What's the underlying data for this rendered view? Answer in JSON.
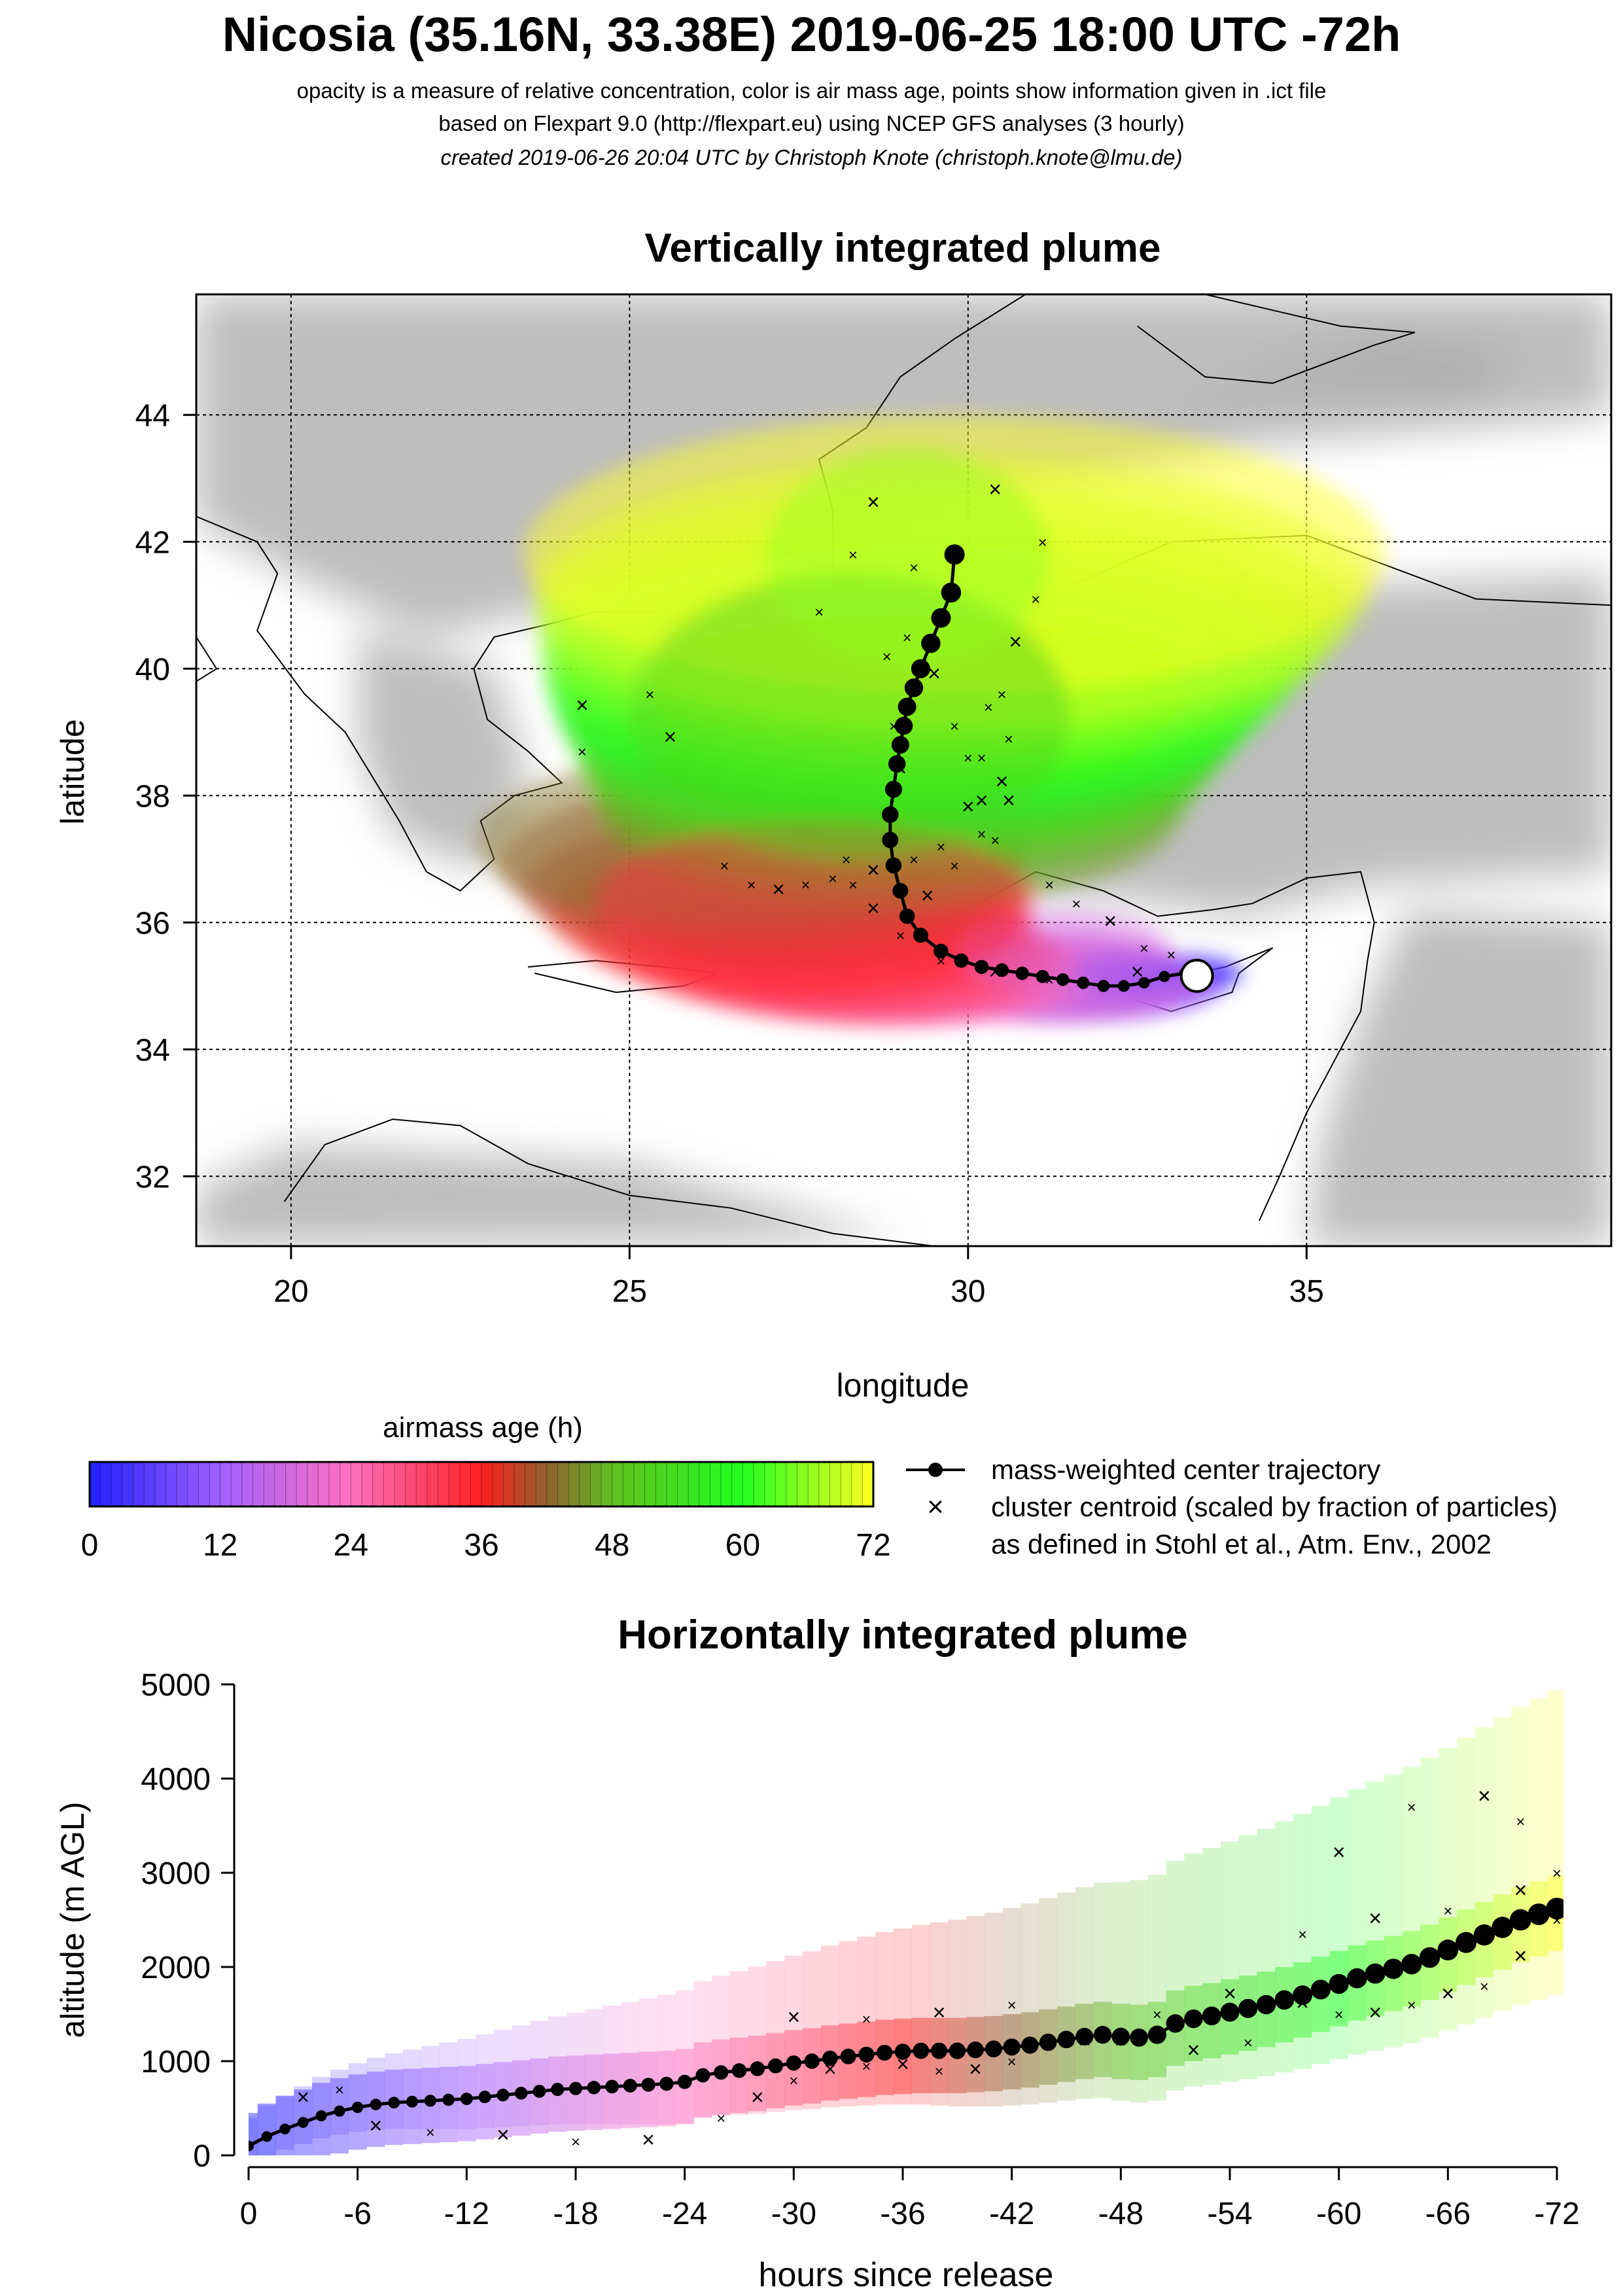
{
  "header": {
    "title": "Nicosia (35.16N, 33.38E) 2019-06-25 18:00 UTC -72h",
    "subtitle_1": "opacity is a measure of relative concentration, color is air mass age, points show information given in .ict file",
    "subtitle_2": "based on Flexpart 9.0 (http://flexpart.eu) using NCEP GFS analyses (3 hourly)",
    "subtitle_3": "created 2019-06-26 20:04 UTC by Christoph Knote (christoph.knote@lmu.de)"
  },
  "colors": {
    "age_scale": [
      "#2020ff",
      "#8040ff",
      "#e070e0",
      "#ff6090",
      "#ff2020",
      "#a06020",
      "#40e020",
      "#20ff20",
      "#a0ff20",
      "#ffff20"
    ],
    "land_shade": "#a8a8a8",
    "sea": "#ffffff"
  },
  "chart_data": [
    {
      "type": "scatter",
      "title": "Vertically integrated plume",
      "xlabel": "longitude",
      "ylabel": "latitude",
      "xlim": [
        18.6,
        39.5
      ],
      "ylim": [
        30.9,
        45.9
      ],
      "xticks": [
        "20",
        "25",
        "30",
        "35"
      ],
      "yticks": [
        "32",
        "34",
        "36",
        "38",
        "40",
        "42",
        "44"
      ],
      "grid": true,
      "release_point": {
        "lon": 33.38,
        "lat": 35.16,
        "label": "Nicosia"
      },
      "series": [
        {
          "name": "mass-weighted center trajectory",
          "lon": [
            33.38,
            33.2,
            32.9,
            32.6,
            32.3,
            32.0,
            31.7,
            31.4,
            31.1,
            30.8,
            30.5,
            30.2,
            29.9,
            29.6,
            29.3,
            29.1,
            29.0,
            28.9,
            28.85,
            28.85,
            28.9,
            28.95,
            29.0,
            29.05,
            29.1,
            29.2,
            29.3,
            29.45,
            29.6,
            29.75,
            29.8
          ],
          "lat": [
            35.2,
            35.2,
            35.15,
            35.05,
            35.0,
            35.0,
            35.05,
            35.1,
            35.15,
            35.2,
            35.25,
            35.3,
            35.4,
            35.55,
            35.8,
            36.1,
            36.5,
            36.9,
            37.3,
            37.7,
            38.1,
            38.5,
            38.8,
            39.1,
            39.4,
            39.7,
            40.0,
            40.4,
            40.8,
            41.2,
            41.8
          ]
        },
        {
          "name": "cluster centroid (scaled by fraction of particles)",
          "lon": [
            32.5,
            32.0,
            31.2,
            30.4,
            29.6,
            29.0,
            28.6,
            28.3,
            28.2,
            29.4,
            29.8,
            30.2,
            30.6,
            31.2,
            31.6,
            32.1,
            32.6,
            33.0,
            30.5,
            30.6,
            30.5,
            30.7,
            31.0,
            31.1,
            30.4,
            30.3,
            30.2,
            30.0,
            29.6,
            29.2,
            28.6,
            28.0,
            27.6,
            27.2,
            26.8,
            26.4,
            25.6,
            25.3,
            24.3,
            24.3,
            27.8,
            28.3,
            28.6,
            28.8,
            28.9,
            29.0,
            29.1,
            29.2,
            29.5,
            29.8,
            30.0,
            30.2,
            30.4
          ],
          "lat": [
            35.2,
            35.0,
            35.1,
            35.2,
            35.4,
            35.8,
            36.2,
            36.6,
            37.0,
            36.4,
            36.9,
            37.4,
            37.9,
            36.6,
            36.3,
            36.0,
            35.6,
            35.5,
            38.2,
            38.9,
            39.6,
            40.4,
            41.1,
            42.0,
            42.8,
            39.4,
            38.6,
            37.8,
            37.2,
            37.0,
            36.8,
            36.7,
            36.6,
            36.5,
            36.6,
            36.9,
            38.9,
            39.6,
            38.7,
            39.4,
            40.9,
            41.8,
            42.6,
            40.2,
            39.1,
            38.4,
            40.5,
            41.6,
            39.9,
            39.1,
            38.6,
            37.9,
            37.3
          ]
        }
      ],
      "plume_age_hours_regions": [
        {
          "age": "0-12",
          "lon_range": [
            31.5,
            33.3
          ],
          "lat_range": [
            34.9,
            35.5
          ]
        },
        {
          "age": "12-24",
          "lon_range": [
            29.8,
            33.0
          ],
          "lat_range": [
            34.9,
            36.2
          ]
        },
        {
          "age": "24-42",
          "lon_range": [
            24.5,
            31.0
          ],
          "lat_range": [
            35.0,
            37.6
          ]
        },
        {
          "age": "42-60",
          "lon_range": [
            25.0,
            31.5
          ],
          "lat_range": [
            37.0,
            41.5
          ]
        },
        {
          "age": "60-72",
          "lon_range": [
            27.0,
            31.2
          ],
          "lat_range": [
            40.0,
            43.5
          ]
        }
      ]
    },
    {
      "type": "heatmap",
      "title": "airmass age (h)",
      "orientation": "horizontal-colorbar",
      "range": [
        0,
        72
      ],
      "ticks": [
        "0",
        "12",
        "24",
        "36",
        "48",
        "60",
        "72"
      ],
      "colors_by_age": [
        {
          "age": 0,
          "color": "#2020ff"
        },
        {
          "age": 12,
          "color": "#a060ff"
        },
        {
          "age": 24,
          "color": "#ff70c0"
        },
        {
          "age": 36,
          "color": "#ff2020"
        },
        {
          "age": 42,
          "color": "#906030"
        },
        {
          "age": 48,
          "color": "#60c020"
        },
        {
          "age": 60,
          "color": "#20ff20"
        },
        {
          "age": 72,
          "color": "#ffff20"
        }
      ]
    },
    {
      "type": "scatter",
      "title": "Horizontally integrated plume",
      "xlabel": "hours since release",
      "ylabel": "altitude (m AGL)",
      "xlim": [
        0,
        -72
      ],
      "ylim": [
        0,
        5000
      ],
      "xticks": [
        "0",
        "-6",
        "-12",
        "-18",
        "-24",
        "-30",
        "-36",
        "-42",
        "-48",
        "-54",
        "-60",
        "-66",
        "-72"
      ],
      "yticks": [
        "0",
        "1000",
        "2000",
        "3000",
        "4000",
        "5000"
      ],
      "series": [
        {
          "name": "mass-weighted center trajectory",
          "x": [
            0,
            -1,
            -2,
            -3,
            -4,
            -5,
            -6,
            -7,
            -8,
            -9,
            -10,
            -11,
            -12,
            -13,
            -14,
            -15,
            -16,
            -17,
            -18,
            -19,
            -20,
            -21,
            -22,
            -23,
            -24,
            -25,
            -26,
            -27,
            -28,
            -29,
            -30,
            -31,
            -32,
            -33,
            -34,
            -35,
            -36,
            -37,
            -38,
            -39,
            -40,
            -41,
            -42,
            -43,
            -44,
            -45,
            -46,
            -47,
            -48,
            -49,
            -50,
            -51,
            -52,
            -53,
            -54,
            -55,
            -56,
            -57,
            -58,
            -59,
            -60,
            -61,
            -62,
            -63,
            -64,
            -65,
            -66,
            -67,
            -68,
            -69,
            -70,
            -71,
            -72
          ],
          "y": [
            100,
            200,
            280,
            350,
            420,
            470,
            510,
            540,
            560,
            570,
            580,
            590,
            600,
            620,
            640,
            660,
            680,
            700,
            710,
            720,
            730,
            740,
            750,
            760,
            780,
            850,
            880,
            900,
            920,
            950,
            980,
            1000,
            1030,
            1050,
            1070,
            1090,
            1100,
            1110,
            1110,
            1110,
            1120,
            1130,
            1150,
            1170,
            1200,
            1230,
            1260,
            1280,
            1260,
            1250,
            1280,
            1400,
            1450,
            1480,
            1520,
            1560,
            1600,
            1650,
            1700,
            1760,
            1820,
            1880,
            1930,
            1980,
            2030,
            2100,
            2180,
            2260,
            2340,
            2420,
            2500,
            2560,
            2620
          ]
        },
        {
          "name": "cluster centroid (scaled by fraction of particles)",
          "x": [
            -3,
            -5,
            -7,
            -10,
            -14,
            -18,
            -22,
            -26,
            -28,
            -30,
            -32,
            -34,
            -36,
            -38,
            -40,
            -42,
            -44,
            -46,
            -48,
            -50,
            -52,
            -55,
            -58,
            -60,
            -62,
            -64,
            -66,
            -68,
            -70,
            -72,
            -30,
            -34,
            -38,
            -42,
            -46,
            -50,
            -54,
            -58,
            -62,
            -66,
            -70,
            -72,
            -60,
            -64,
            -68,
            -70
          ],
          "y": [
            600,
            700,
            300,
            250,
            200,
            150,
            150,
            400,
            600,
            800,
            900,
            950,
            950,
            900,
            900,
            1000,
            1200,
            1300,
            1200,
            1300,
            1100,
            1200,
            1600,
            1500,
            1500,
            1600,
            1700,
            1800,
            2100,
            2500,
            1450,
            1450,
            1500,
            1600,
            1200,
            1500,
            1700,
            2350,
            2500,
            2600,
            2800,
            3000,
            3200,
            3700,
            3800,
            3550
          ]
        }
      ]
    }
  ],
  "labels": {
    "colorbar_title": "airmass age (h)",
    "legend_line": "mass-weighted center trajectory",
    "legend_cross": "cluster centroid (scaled by fraction of particles)",
    "legend_note": "as defined in Stohl et al., Atm. Env., 2002"
  }
}
